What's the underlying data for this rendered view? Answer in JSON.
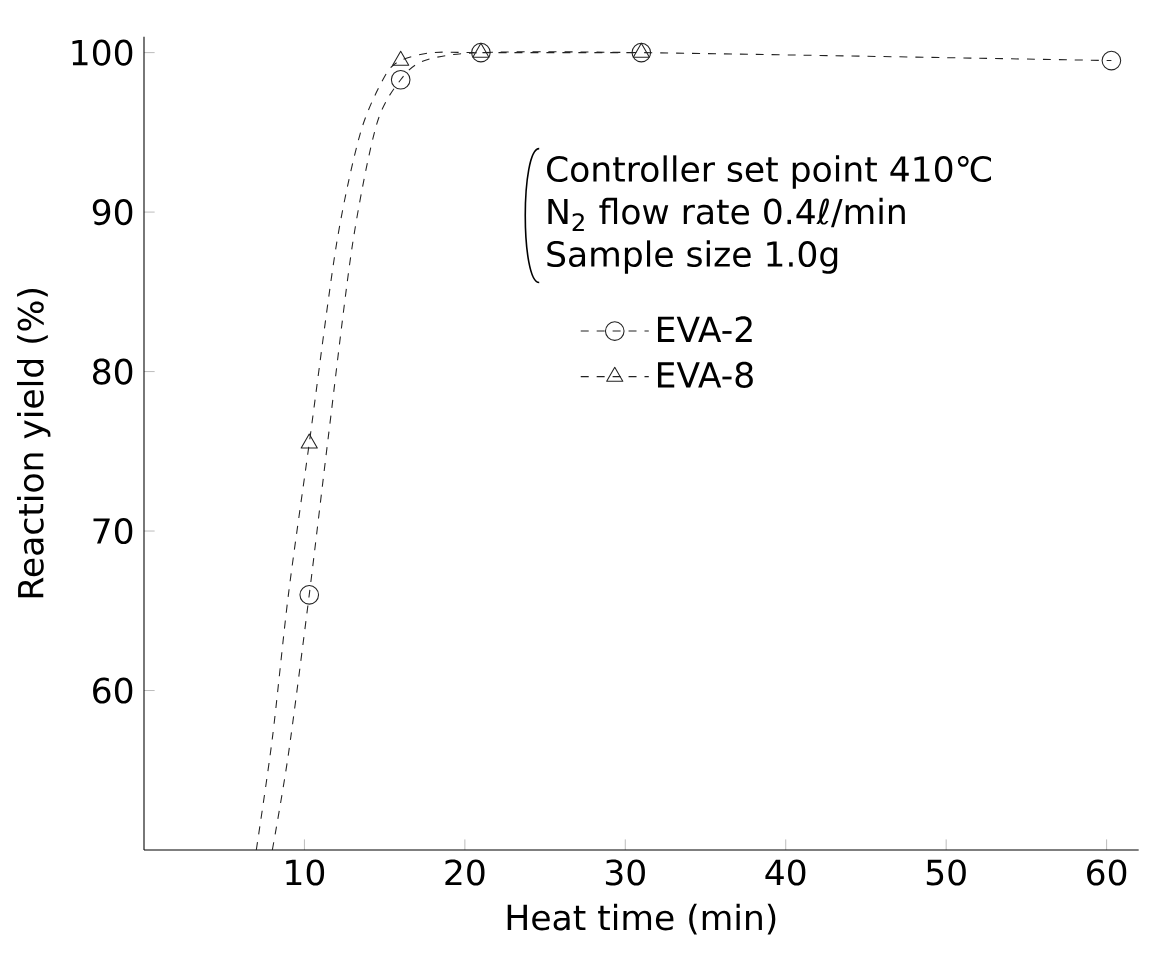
{
  "chart_data": {
    "type": "line",
    "xlabel": "Heat time (min)",
    "ylabel": "Reaction yield (%)",
    "xlim": [
      0,
      62
    ],
    "ylim": [
      50,
      101
    ],
    "xticks": [
      10,
      20,
      30,
      40,
      50,
      60
    ],
    "yticks": [
      60,
      70,
      80,
      90,
      100
    ],
    "legend": "right",
    "annotations": [
      "Controller set point 410℃",
      "N$_{2}$ flow rate 0.4ℓ/min",
      "Sample size 1.0g"
    ],
    "series": [
      {
        "name": "EVA-2",
        "type": "scatter",
        "marker": "circle",
        "color": "#222222",
        "x": [
          10.3,
          16,
          21,
          31,
          60.3
        ],
        "values": [
          66,
          98.3,
          100,
          100,
          99.5
        ]
      },
      {
        "name": "EVA-8",
        "type": "scatter",
        "marker": "triangle",
        "color": "#222222",
        "x": [
          10.3,
          16,
          21,
          31
        ],
        "values": [
          75.5,
          99.5,
          100,
          100
        ]
      },
      {
        "type": "line",
        "marker": "none",
        "line_style": "dashed",
        "color": "#222222",
        "x": [
          8,
          9,
          10.3,
          11.5,
          13,
          14.5,
          16,
          17.5,
          21,
          31,
          60.3
        ],
        "values": [
          50,
          56,
          66,
          76,
          88,
          95.5,
          98.3,
          99.5,
          100,
          100,
          99.5
        ]
      },
      {
        "type": "line",
        "marker": "none",
        "line_style": "dashed",
        "color": "#222222",
        "x": [
          7,
          8,
          9,
          10.3,
          12,
          13.5,
          15,
          16,
          18,
          21,
          31
        ],
        "values": [
          50,
          57,
          66,
          75.5,
          88,
          95,
          98.5,
          99.5,
          100,
          100,
          100
        ]
      }
    ]
  }
}
